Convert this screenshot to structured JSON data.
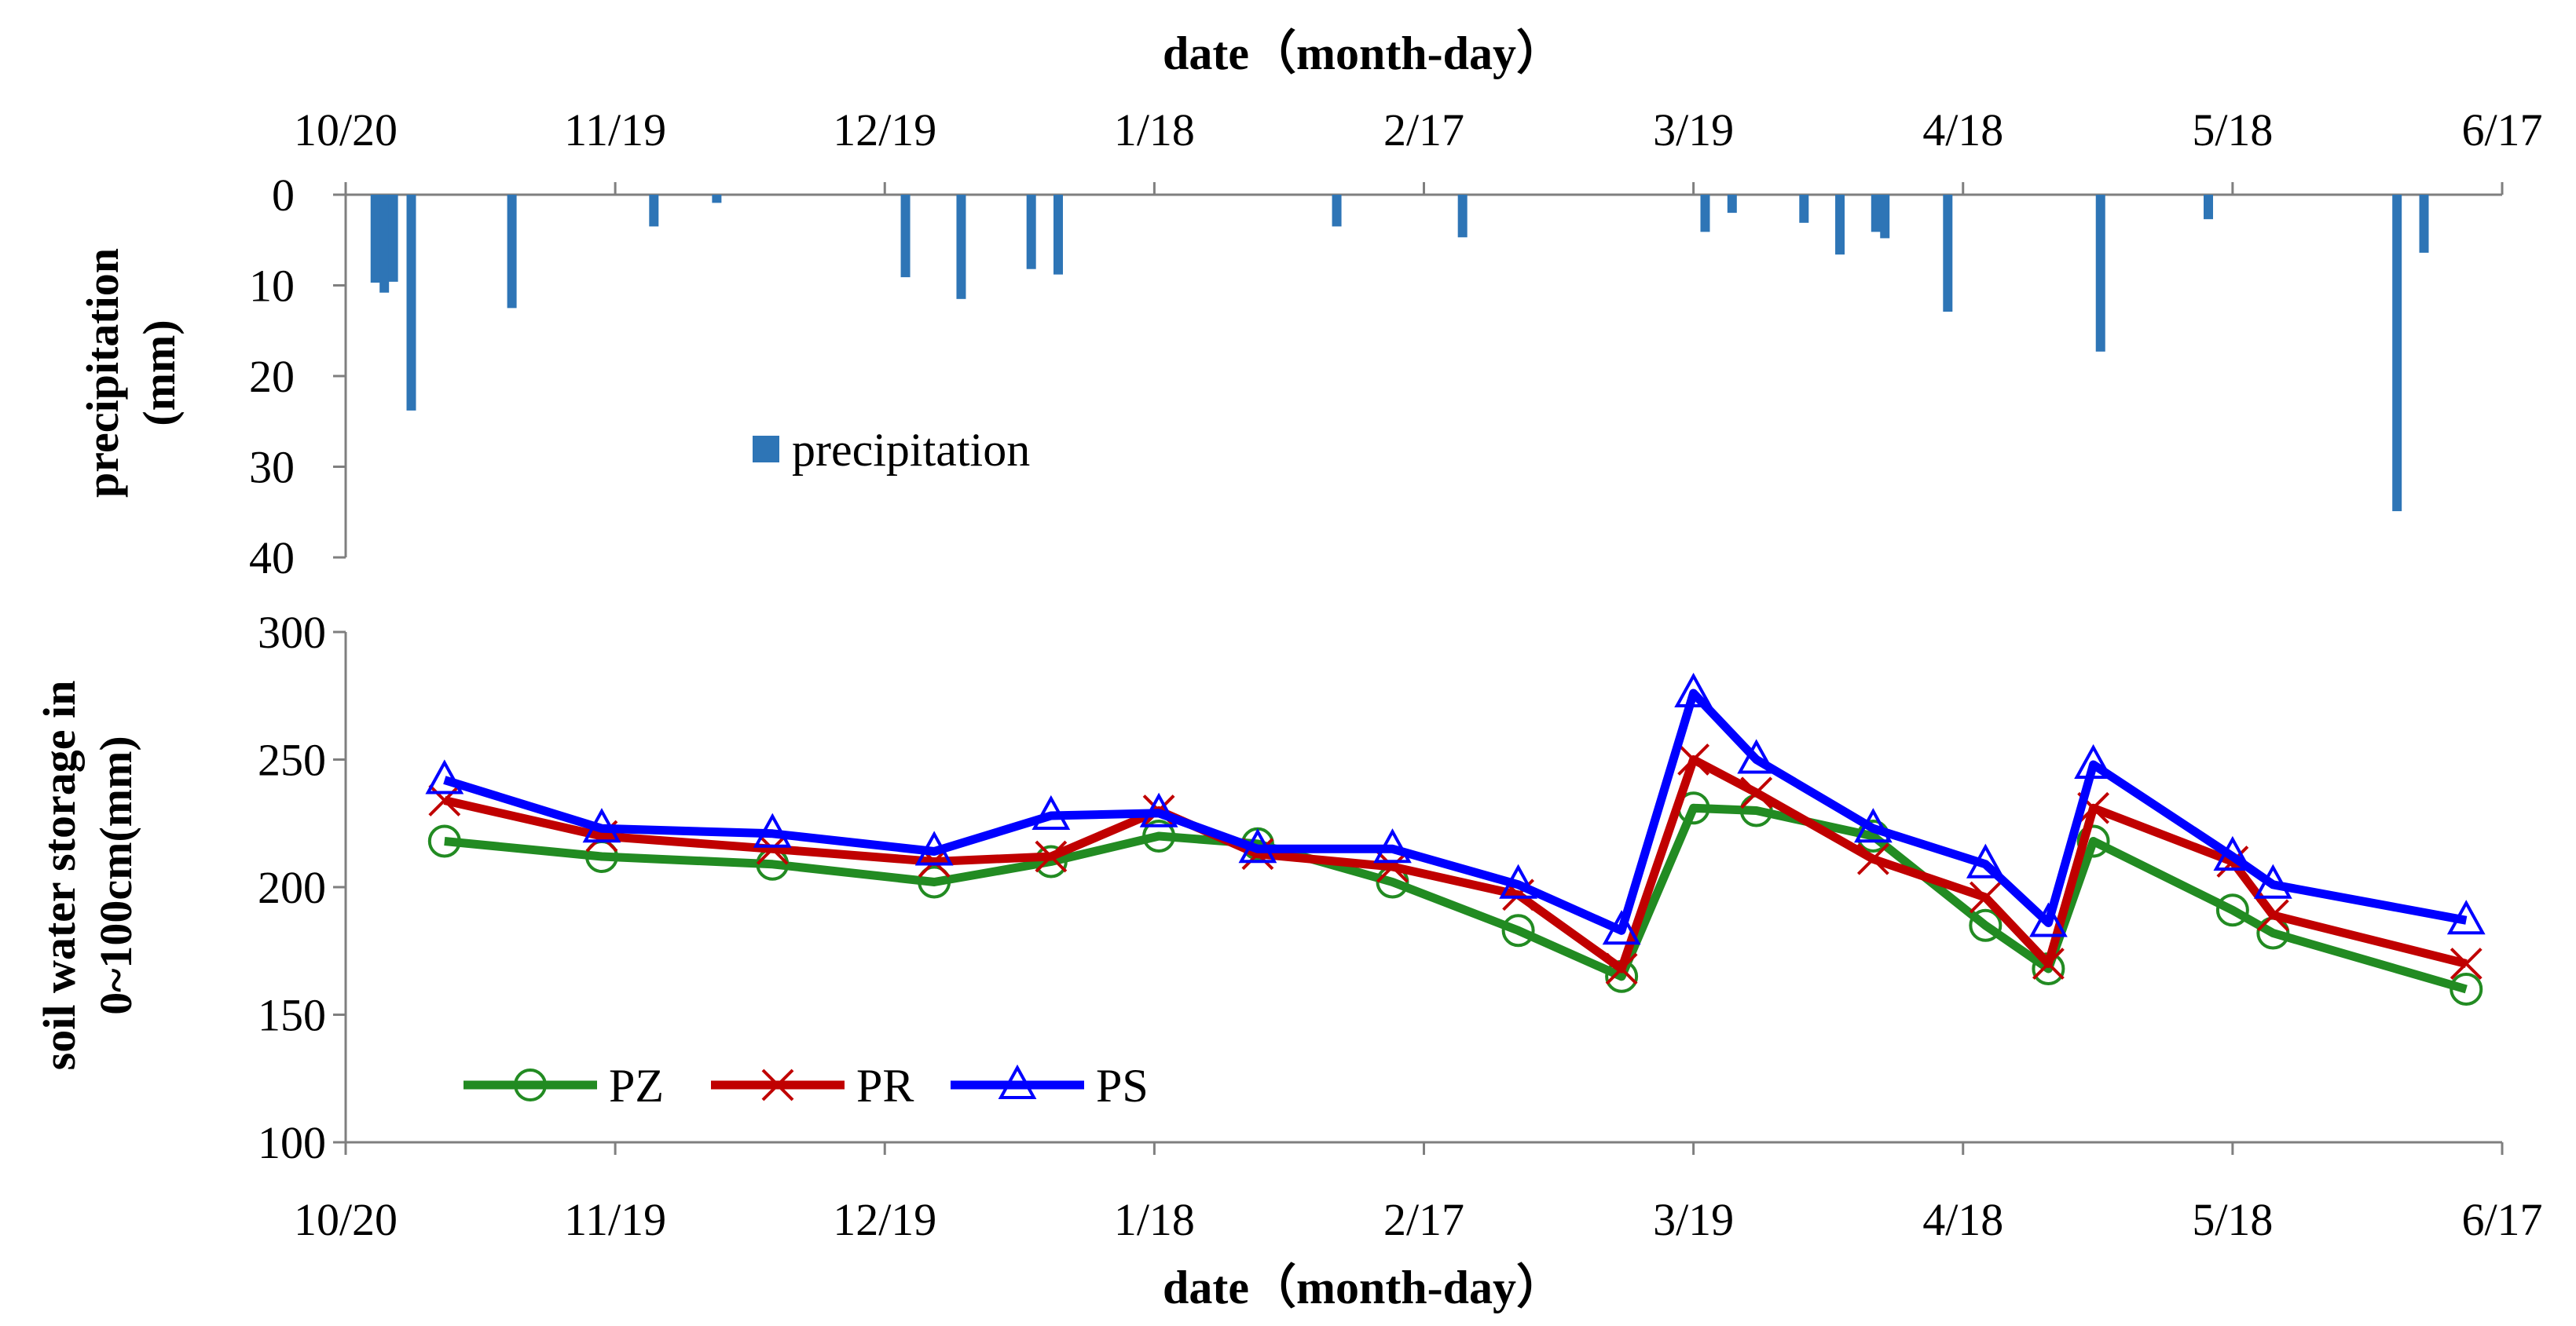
{
  "chart_data": [
    {
      "type": "bar",
      "id": "precipitation",
      "top_axis_title": "date（month-day）",
      "ylabel_lines": [
        "precipitation",
        "(mm)"
      ],
      "x_tick_labels": [
        "10/20",
        "11/19",
        "12/19",
        "1/18",
        "2/17",
        "3/19",
        "4/18",
        "5/18",
        "6/17"
      ],
      "x_ticks_day": [
        0,
        30,
        60,
        90,
        120,
        150,
        180,
        210,
        240
      ],
      "xlim_day": [
        0,
        240
      ],
      "y_tick_labels": [
        "0",
        "10",
        "20",
        "30",
        "40"
      ],
      "ylim": [
        0,
        40
      ],
      "y_inverted": true,
      "legend": {
        "label": "precipitation",
        "placement": "top-center"
      },
      "color": "#2e75b6",
      "series": [
        {
          "name": "precipitation",
          "points": [
            {
              "day": 3.3,
              "value": 9.7
            },
            {
              "day": 4.3,
              "value": 10.8
            },
            {
              "day": 5.3,
              "value": 9.6
            },
            {
              "day": 7.3,
              "value": 23.8
            },
            {
              "day": 18.5,
              "value": 12.5
            },
            {
              "day": 34.3,
              "value": 3.5
            },
            {
              "day": 41.3,
              "value": 0.9
            },
            {
              "day": 62.3,
              "value": 9.1
            },
            {
              "day": 68.5,
              "value": 11.5
            },
            {
              "day": 76.3,
              "value": 8.2
            },
            {
              "day": 79.3,
              "value": 8.8
            },
            {
              "day": 110.3,
              "value": 3.5
            },
            {
              "day": 124.3,
              "value": 4.7
            },
            {
              "day": 151.3,
              "value": 4.1
            },
            {
              "day": 154.3,
              "value": 2.0
            },
            {
              "day": 162.3,
              "value": 3.1
            },
            {
              "day": 166.3,
              "value": 6.6
            },
            {
              "day": 170.3,
              "value": 4.1
            },
            {
              "day": 171.3,
              "value": 4.8
            },
            {
              "day": 178.3,
              "value": 12.9
            },
            {
              "day": 195.3,
              "value": 17.3
            },
            {
              "day": 207.3,
              "value": 2.7
            },
            {
              "day": 228.3,
              "value": 34.9
            },
            {
              "day": 231.3,
              "value": 6.4
            }
          ]
        }
      ]
    },
    {
      "type": "line",
      "id": "soil-water",
      "xlabel": "date（month-day）",
      "ylabel_lines": [
        "soil water storage in",
        "0~100cm(mm)"
      ],
      "x_tick_labels": [
        "10/20",
        "11/19",
        "12/19",
        "1/18",
        "2/17",
        "3/19",
        "4/18",
        "5/18",
        "6/17"
      ],
      "x_ticks_day": [
        0,
        30,
        60,
        90,
        120,
        150,
        180,
        210,
        240
      ],
      "xlim_day": [
        0,
        240
      ],
      "y_tick_labels": [
        "100",
        "150",
        "200",
        "250",
        "300"
      ],
      "ylim": [
        100,
        300
      ],
      "legend": {
        "placement": "bottom-left"
      },
      "series": [
        {
          "name": "PZ",
          "color": "#228b22",
          "marker": "circle",
          "points": [
            {
              "day": 11,
              "value": 218
            },
            {
              "day": 28.5,
              "value": 212
            },
            {
              "day": 47.5,
              "value": 209
            },
            {
              "day": 65.5,
              "value": 202
            },
            {
              "day": 78.5,
              "value": 210
            },
            {
              "day": 90.5,
              "value": 220
            },
            {
              "day": 101.5,
              "value": 217
            },
            {
              "day": 116.5,
              "value": 202
            },
            {
              "day": 130.5,
              "value": 183
            },
            {
              "day": 142,
              "value": 165
            },
            {
              "day": 150,
              "value": 231
            },
            {
              "day": 157,
              "value": 230
            },
            {
              "day": 170,
              "value": 220
            },
            {
              "day": 182.5,
              "value": 185
            },
            {
              "day": 189.5,
              "value": 168
            },
            {
              "day": 194.5,
              "value": 218
            },
            {
              "day": 210,
              "value": 191
            },
            {
              "day": 214.5,
              "value": 182
            },
            {
              "day": 236,
              "value": 160
            }
          ]
        },
        {
          "name": "PR",
          "color": "#c00000",
          "marker": "x",
          "points": [
            {
              "day": 11,
              "value": 234
            },
            {
              "day": 28.5,
              "value": 220
            },
            {
              "day": 47.5,
              "value": 215
            },
            {
              "day": 65.5,
              "value": 210
            },
            {
              "day": 78.5,
              "value": 212
            },
            {
              "day": 90.5,
              "value": 230
            },
            {
              "day": 101.5,
              "value": 213
            },
            {
              "day": 116.5,
              "value": 208
            },
            {
              "day": 130.5,
              "value": 197
            },
            {
              "day": 142,
              "value": 168
            },
            {
              "day": 150,
              "value": 250
            },
            {
              "day": 157,
              "value": 237
            },
            {
              "day": 170,
              "value": 211
            },
            {
              "day": 182.5,
              "value": 196
            },
            {
              "day": 189.5,
              "value": 170
            },
            {
              "day": 194.5,
              "value": 231
            },
            {
              "day": 210,
              "value": 210
            },
            {
              "day": 214.5,
              "value": 189
            },
            {
              "day": 236,
              "value": 170
            }
          ]
        },
        {
          "name": "PS",
          "color": "#0000ff",
          "marker": "triangle",
          "points": [
            {
              "day": 11,
              "value": 242
            },
            {
              "day": 28.5,
              "value": 223
            },
            {
              "day": 47.5,
              "value": 221
            },
            {
              "day": 65.5,
              "value": 214
            },
            {
              "day": 78.5,
              "value": 228
            },
            {
              "day": 90.5,
              "value": 229
            },
            {
              "day": 101.5,
              "value": 215
            },
            {
              "day": 116.5,
              "value": 215
            },
            {
              "day": 130.5,
              "value": 201
            },
            {
              "day": 142,
              "value": 183
            },
            {
              "day": 150,
              "value": 276
            },
            {
              "day": 157,
              "value": 250
            },
            {
              "day": 170,
              "value": 223
            },
            {
              "day": 182.5,
              "value": 209
            },
            {
              "day": 189.5,
              "value": 186
            },
            {
              "day": 194.5,
              "value": 248
            },
            {
              "day": 210,
              "value": 212
            },
            {
              "day": 214.5,
              "value": 201
            },
            {
              "day": 236,
              "value": 187
            }
          ]
        }
      ]
    }
  ]
}
